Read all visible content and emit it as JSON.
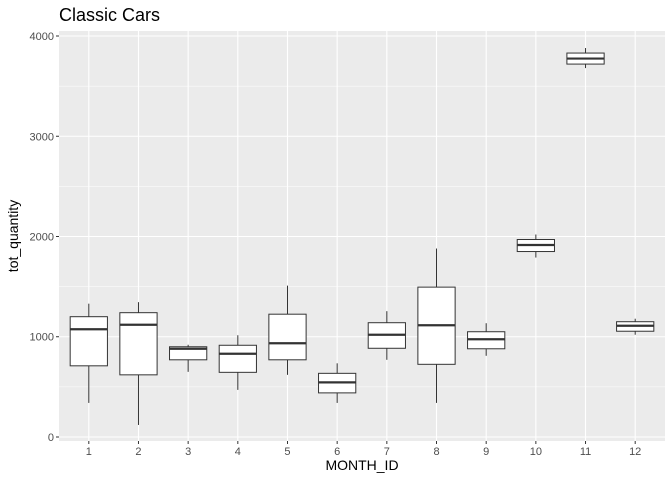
{
  "chart_data": {
    "type": "boxplot",
    "title": "Classic Cars",
    "xlabel": "MONTH_ID",
    "ylabel": "tot_quantity",
    "ylim": [
      -40,
      4050
    ],
    "yticks": [
      0,
      1000,
      2000,
      3000,
      4000
    ],
    "categories": [
      "1",
      "2",
      "3",
      "4",
      "5",
      "6",
      "7",
      "8",
      "9",
      "10",
      "11",
      "12"
    ],
    "boxes": [
      {
        "x": "1",
        "min": 340,
        "q1": 710,
        "median": 1075,
        "q3": 1200,
        "max": 1330
      },
      {
        "x": "2",
        "min": 120,
        "q1": 620,
        "median": 1120,
        "q3": 1240,
        "max": 1345
      },
      {
        "x": "3",
        "min": 650,
        "q1": 770,
        "median": 880,
        "q3": 900,
        "max": 920
      },
      {
        "x": "4",
        "min": 470,
        "q1": 645,
        "median": 830,
        "q3": 915,
        "max": 1015
      },
      {
        "x": "5",
        "min": 620,
        "q1": 770,
        "median": 935,
        "q3": 1225,
        "max": 1510
      },
      {
        "x": "6",
        "min": 340,
        "q1": 440,
        "median": 545,
        "q3": 635,
        "max": 735
      },
      {
        "x": "7",
        "min": 770,
        "q1": 885,
        "median": 1020,
        "q3": 1140,
        "max": 1255
      },
      {
        "x": "8",
        "min": 340,
        "q1": 725,
        "median": 1115,
        "q3": 1495,
        "max": 1880
      },
      {
        "x": "9",
        "min": 810,
        "q1": 880,
        "median": 975,
        "q3": 1050,
        "max": 1135
      },
      {
        "x": "10",
        "min": 1790,
        "q1": 1850,
        "median": 1915,
        "q3": 1970,
        "max": 2020
      },
      {
        "x": "11",
        "min": 3680,
        "q1": 3720,
        "median": 3775,
        "q3": 3830,
        "max": 3880
      },
      {
        "x": "12",
        "min": 1020,
        "q1": 1055,
        "median": 1110,
        "q3": 1150,
        "max": 1180
      }
    ],
    "grid": true,
    "colors": {
      "panel": "#ebebeb",
      "grid_major": "#ffffff",
      "box_fill": "#ffffff",
      "box_stroke": "#333333",
      "tick": "#333333"
    }
  }
}
